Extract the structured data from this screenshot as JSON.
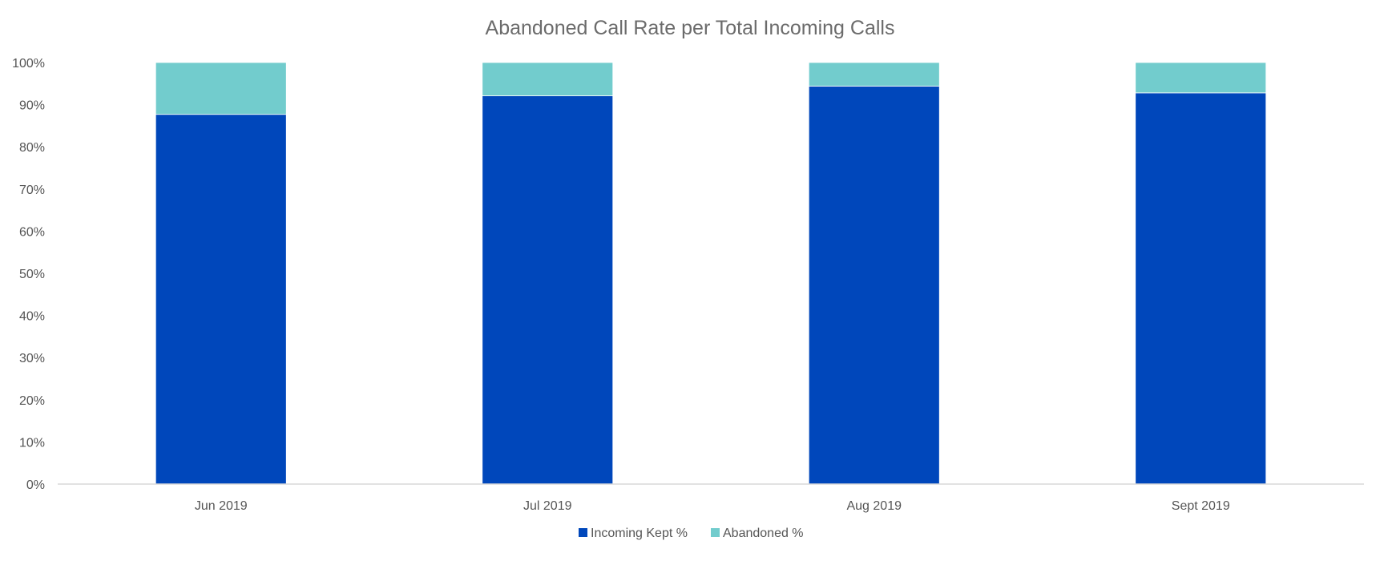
{
  "chart_data": {
    "type": "bar",
    "stacked": true,
    "title": "Abandoned Call Rate per Total Incoming Calls",
    "xlabel": "",
    "ylabel": "",
    "categories": [
      "Jun 2019",
      "Jul 2019",
      "Aug 2019",
      "Sept 2019"
    ],
    "series": [
      {
        "name": "Incoming Kept %",
        "values": [
          87.7,
          92.1,
          94.4,
          92.8
        ],
        "color": "#0047bb"
      },
      {
        "name": "Abandoned %",
        "values": [
          12.3,
          7.9,
          5.6,
          7.2
        ],
        "color": "#72cccd"
      }
    ],
    "ylim": [
      0,
      100
    ],
    "yticks": [
      "0%",
      "10%",
      "20%",
      "30%",
      "40%",
      "50%",
      "60%",
      "70%",
      "80%",
      "90%",
      "100%"
    ],
    "grid": false,
    "legend_position": "bottom",
    "axis_color": "#d9d9d9",
    "text_color": "#595959"
  }
}
